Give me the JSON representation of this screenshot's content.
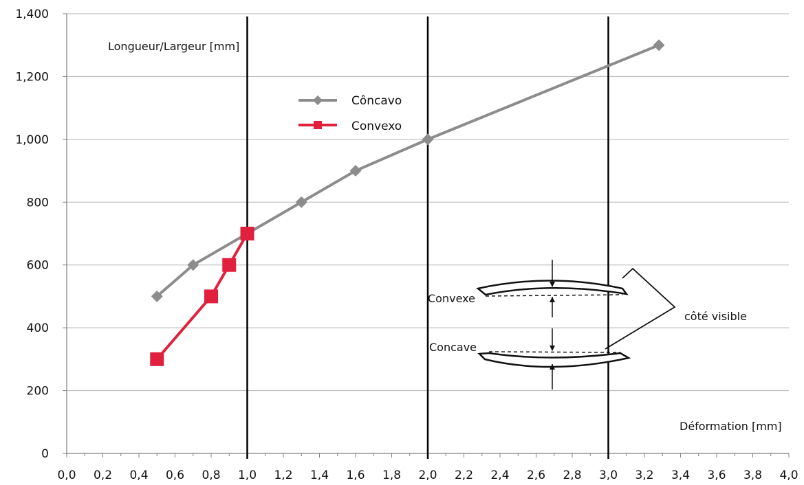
{
  "chart_data": {
    "type": "line",
    "title": "",
    "ylabel": "Longueur/Largeur [mm]",
    "xlabel": "Déformation [mm]",
    "xlim": [
      0,
      4.0
    ],
    "ylim": [
      0,
      1400
    ],
    "x_ticks": [
      "0,0",
      "0,2",
      "0,4",
      "0,6",
      "0,8",
      "1,0",
      "1,2",
      "1,4",
      "1,6",
      "1,8",
      "2,0",
      "2,2",
      "2,4",
      "2,6",
      "2,8",
      "3,0",
      "3,2",
      "3,4",
      "3,6",
      "3,8",
      "4,0"
    ],
    "y_ticks": [
      "0",
      "200",
      "400",
      "600",
      "800",
      "1,000",
      "1,200",
      "1,400"
    ],
    "y_tick_values": [
      0,
      200,
      400,
      600,
      800,
      1000,
      1200,
      1400
    ],
    "grid": "horizontal",
    "legend_placement": "top-center",
    "series": [
      {
        "name": "Côncavo",
        "color": "#8c8c8c",
        "marker": "diamond",
        "x": [
          0.5,
          0.7,
          1.0,
          1.3,
          1.6,
          2.0,
          3.28
        ],
        "y": [
          500,
          600,
          700,
          800,
          900,
          1000,
          1300
        ]
      },
      {
        "name": "Convexo",
        "color": "#e0203c",
        "marker": "square",
        "x": [
          0.5,
          0.8,
          0.9,
          1.0
        ],
        "y": [
          300,
          500,
          600,
          700
        ]
      }
    ],
    "vertical_lines_x": [
      1.0,
      2.0,
      3.0
    ],
    "annotations": {
      "convexe": "Convexe",
      "concave": "Concave",
      "visible_side": "côté visible"
    }
  }
}
